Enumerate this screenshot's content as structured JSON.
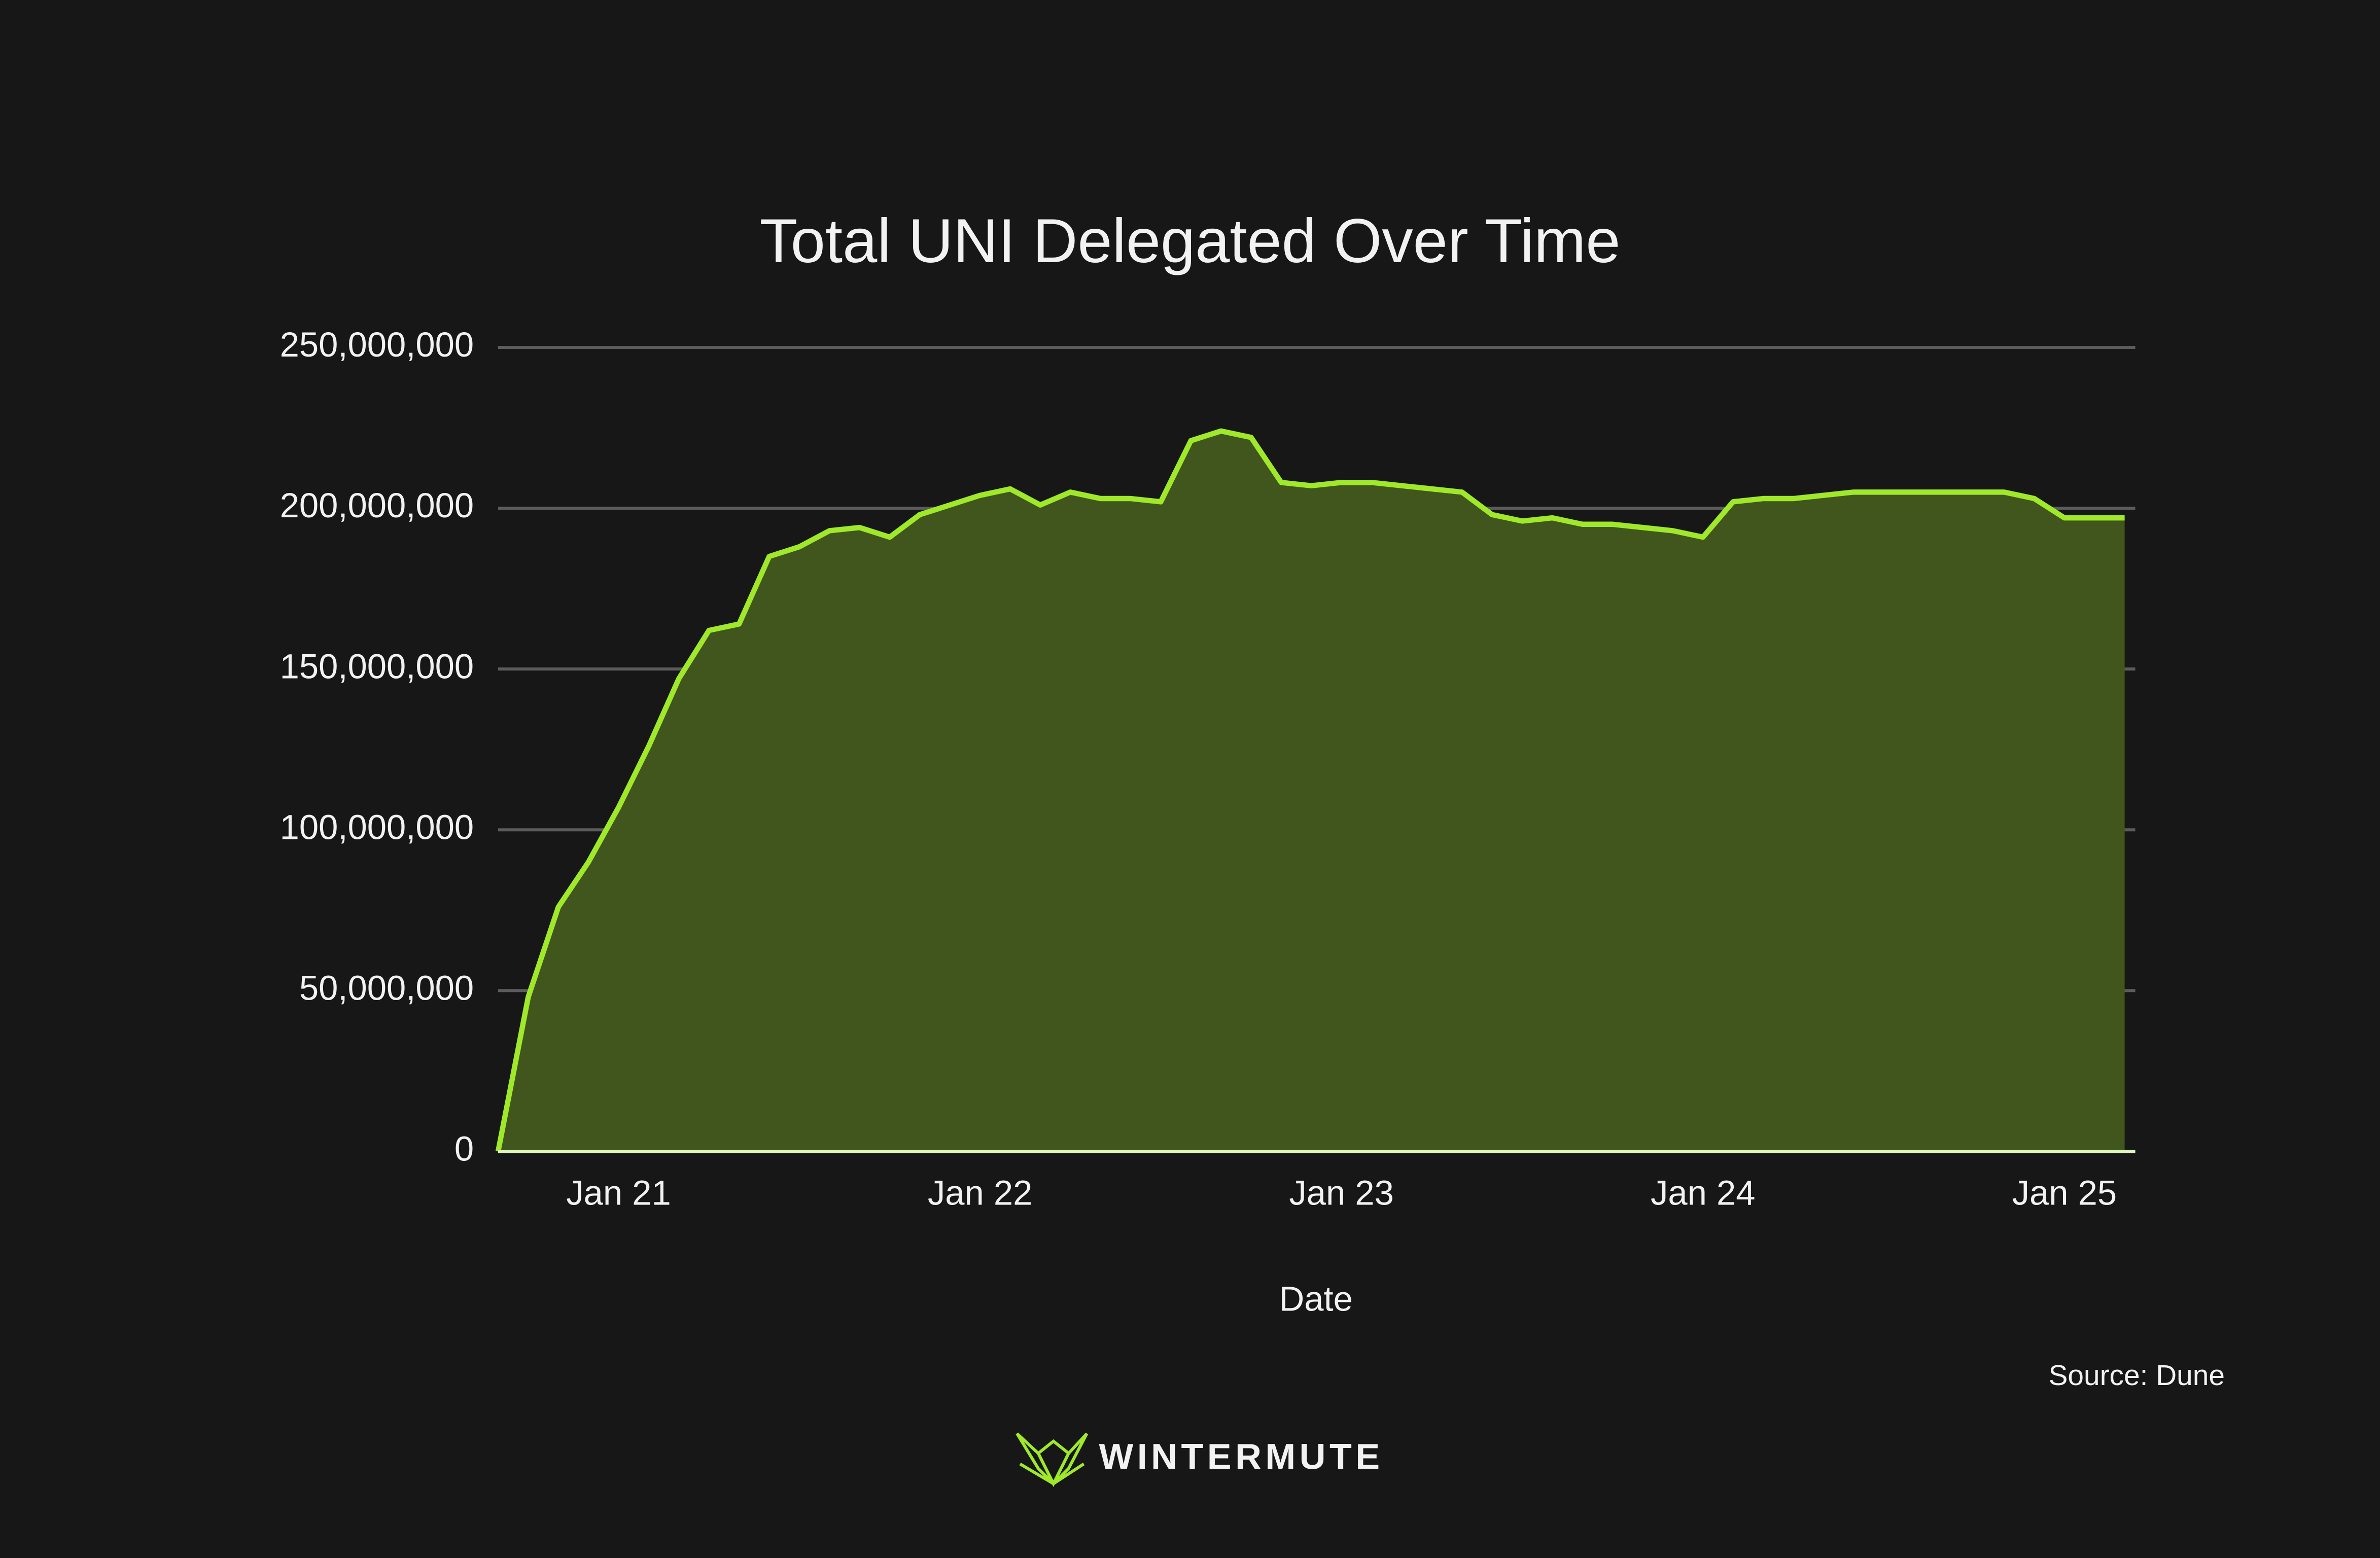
{
  "chart_data": {
    "type": "area",
    "title": "Total UNI Delegated Over Time",
    "x_label": "Date",
    "source": "Source: Dune",
    "logo_text": "WINTERMUTE",
    "x": [
      "2020-09",
      "2020-10",
      "2020-11",
      "2020-12",
      "2021-01",
      "2021-02",
      "2021-03",
      "2021-04",
      "2021-05",
      "2021-06",
      "2021-07",
      "2021-08",
      "2021-09",
      "2021-10",
      "2021-11",
      "2021-12",
      "2022-01",
      "2022-02",
      "2022-03",
      "2022-04",
      "2022-05",
      "2022-06",
      "2022-07",
      "2022-08",
      "2022-09",
      "2022-10",
      "2022-11",
      "2022-12",
      "2023-01",
      "2023-02",
      "2023-03",
      "2023-04",
      "2023-05",
      "2023-06",
      "2023-07",
      "2023-08",
      "2023-09",
      "2023-10",
      "2023-11",
      "2023-12",
      "2024-01",
      "2024-02",
      "2024-03",
      "2024-04",
      "2024-05",
      "2024-06",
      "2024-07",
      "2024-08",
      "2024-09",
      "2024-10",
      "2024-11",
      "2024-12",
      "2025-01",
      "2025-02",
      "2025-03"
    ],
    "series": [
      {
        "name": "Total UNI Delegated",
        "color": "#9fe82a",
        "fill": "#41561d",
        "values": [
          0,
          48000000,
          76000000,
          90000000,
          107000000,
          126000000,
          147000000,
          162000000,
          164000000,
          185000000,
          188000000,
          193000000,
          194000000,
          191000000,
          198000000,
          201000000,
          204000000,
          206000000,
          201000000,
          205000000,
          203000000,
          203000000,
          202000000,
          221000000,
          224000000,
          222000000,
          208000000,
          207000000,
          208000000,
          208000000,
          207000000,
          206000000,
          205000000,
          198000000,
          196000000,
          197000000,
          195000000,
          195000000,
          194000000,
          193000000,
          191000000,
          202000000,
          203000000,
          203000000,
          204000000,
          205000000,
          205000000,
          205000000,
          205000000,
          205000000,
          205000000,
          203000000,
          197000000,
          197000000,
          197000000
        ]
      }
    ],
    "xlim": [
      "2020-09",
      "2025-03"
    ],
    "xticks": [
      {
        "value": "2021-01",
        "label": "Jan 21"
      },
      {
        "value": "2022-01",
        "label": "Jan 22"
      },
      {
        "value": "2023-01",
        "label": "Jan 23"
      },
      {
        "value": "2024-01",
        "label": "Jan 24"
      },
      {
        "value": "2025-01",
        "label": "Jan 25"
      }
    ],
    "ylim": [
      0,
      250000000
    ],
    "yticks": [
      0,
      {
        "value": 50000000,
        "label": "50,000,000"
      },
      {
        "value": 100000000,
        "label": "100,000,000"
      },
      {
        "value": 150000000,
        "label": "150,000,000"
      },
      {
        "value": 200000000,
        "label": "200,000,000"
      },
      {
        "value": 250000000,
        "label": "250,000,000"
      }
    ],
    "grid": true
  }
}
